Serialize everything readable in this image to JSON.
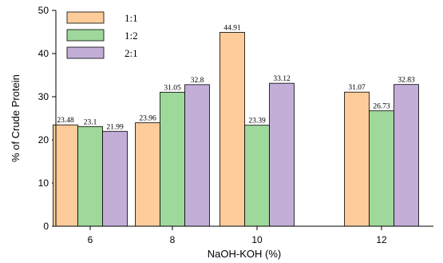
{
  "chart_data": {
    "type": "bar",
    "categories": [
      "6",
      "8",
      "10",
      "12"
    ],
    "series": [
      {
        "name": "1:1",
        "values": [
          23.48,
          23.96,
          44.91,
          31.07
        ],
        "color": "#FDCC9A"
      },
      {
        "name": "1:2",
        "values": [
          23.1,
          31.05,
          23.39,
          26.73
        ],
        "color": "#9FD89B"
      },
      {
        "name": "2:1",
        "values": [
          21.99,
          32.8,
          33.12,
          32.83
        ],
        "color": "#C3AED8"
      }
    ],
    "value_labels": [
      [
        "23.48",
        "23.96",
        "44.91",
        "31.07"
      ],
      [
        "23.1",
        "31.05",
        "23.39",
        "26.73"
      ],
      [
        "21.99",
        "32.8",
        "33.12",
        "32.83"
      ]
    ],
    "title": "",
    "xlabel": "NaOH-KOH (%)",
    "ylabel": "% of Crude Protein",
    "ylim": [
      0,
      50
    ],
    "yticks": [
      0,
      10,
      20,
      30,
      40,
      50
    ],
    "grid": false,
    "legend": "top-left"
  }
}
